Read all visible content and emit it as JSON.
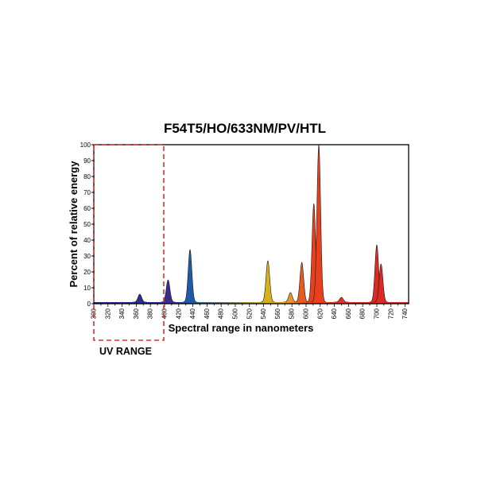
{
  "chart_data": {
    "type": "area",
    "title": "F54T5/HO/633NM/PV/HTL",
    "xlabel": "Spectral range in nanometers",
    "ylabel": "Percent of relative energy",
    "xlim": [
      300,
      745
    ],
    "ylim": [
      0,
      100
    ],
    "x_ticks": [
      300,
      320,
      340,
      360,
      380,
      400,
      420,
      440,
      460,
      480,
      500,
      520,
      540,
      560,
      580,
      600,
      620,
      640,
      660,
      680,
      700,
      720,
      740
    ],
    "y_ticks": [
      0,
      10,
      20,
      30,
      40,
      50,
      60,
      70,
      80,
      90,
      100
    ],
    "grid": false,
    "annotation": {
      "text": "UV RANGE",
      "x_range": [
        300,
        400
      ],
      "style": "dashed-red-box"
    },
    "baseline": 1,
    "peaks": [
      {
        "x": 365,
        "y": 6,
        "color": "#2c2f8c"
      },
      {
        "x": 405,
        "y": 15,
        "color": "#3b2d8f"
      },
      {
        "x": 436,
        "y": 34,
        "color": "#1f5aa8"
      },
      {
        "x": 546,
        "y": 27,
        "color": "#d8b11a"
      },
      {
        "x": 578,
        "y": 7,
        "color": "#e8962a"
      },
      {
        "x": 594,
        "y": 26,
        "color": "#e65a23"
      },
      {
        "x": 611,
        "y": 63,
        "color": "#e8401d"
      },
      {
        "x": 618,
        "y": 100,
        "color": "#e8401d"
      },
      {
        "x": 650,
        "y": 4,
        "color": "#e33424"
      },
      {
        "x": 700,
        "y": 37,
        "color": "#dc2a25"
      },
      {
        "x": 706,
        "y": 25,
        "color": "#dc2a25"
      }
    ]
  }
}
